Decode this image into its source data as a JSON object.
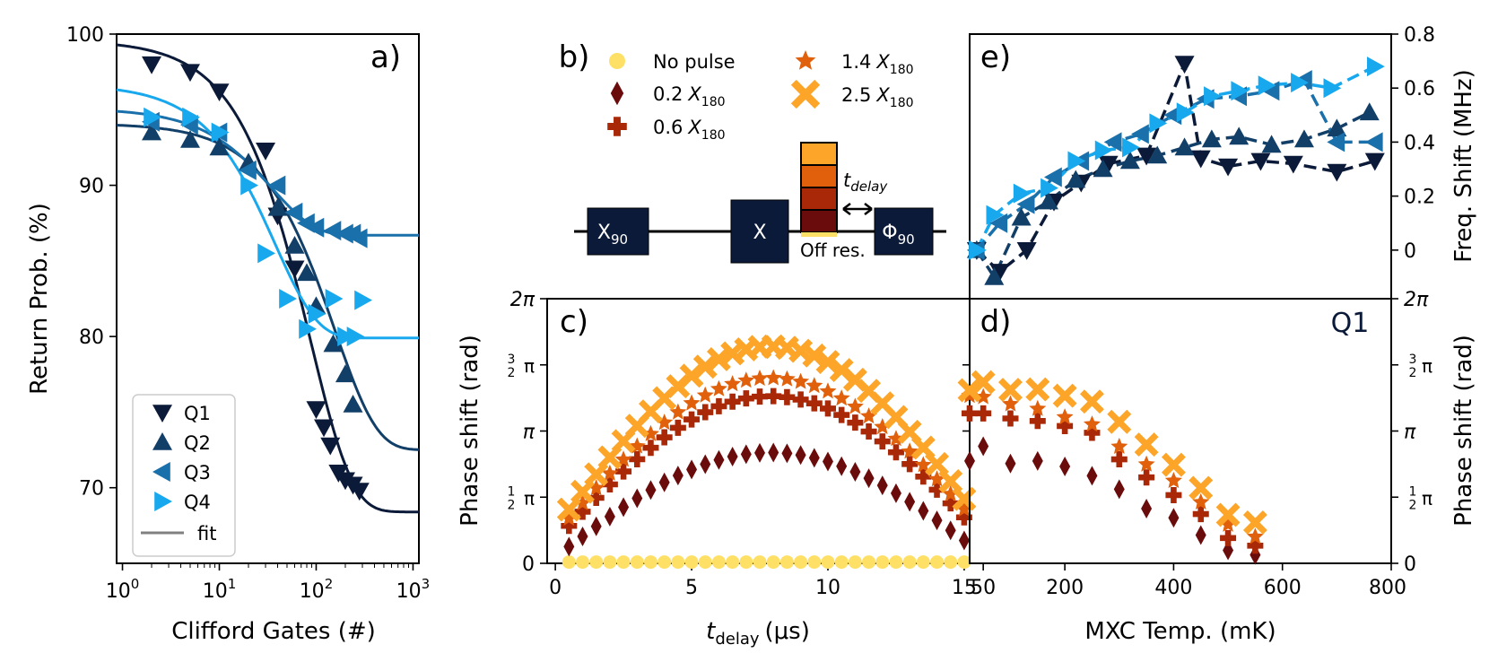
{
  "chart_data": [
    {
      "panel": "a)",
      "type": "scatter",
      "xscale": "log",
      "xlabel": "Clifford Gates (#)",
      "ylabel": "Return Prob. (%)",
      "xlim": [
        1,
        1000
      ],
      "ylim": [
        65,
        100
      ],
      "yticks": [
        70,
        80,
        90,
        100
      ],
      "xtick_labels": [
        {
          "base": "10",
          "exp": "0"
        },
        {
          "base": "10",
          "exp": "1"
        },
        {
          "base": "10",
          "exp": "2"
        },
        {
          "base": "10",
          "exp": "3"
        }
      ],
      "legend": [
        "Q1",
        "Q2",
        "Q3",
        "Q4",
        "fit"
      ],
      "legend_loc": "lower-left",
      "series": [
        {
          "name": "Q1",
          "marker": "triangle-down",
          "color": "#0b1a38",
          "x": [
            2,
            5,
            10,
            30,
            40,
            60,
            100,
            120,
            140,
            170,
            200,
            240,
            280
          ],
          "y": [
            98.0,
            97.5,
            96.2,
            92.3,
            88.0,
            84.5,
            75.2,
            74.0,
            72.8,
            71.0,
            70.5,
            70.2,
            69.8
          ],
          "fit": {
            "A": 31.2,
            "B": 68.4,
            "p": 0.9885
          }
        },
        {
          "name": "Q2",
          "marker": "triangle-up",
          "color": "#123f68",
          "x": [
            2,
            5,
            10,
            20,
            40,
            60,
            80,
            100,
            150,
            200,
            240
          ],
          "y": [
            93.5,
            93.0,
            92.5,
            91.5,
            88.5,
            86.0,
            84.2,
            82.0,
            79.5,
            77.5,
            75.5
          ],
          "fit": {
            "A": 21.6,
            "B": 72.5,
            "p": 0.9936
          }
        },
        {
          "name": "Q3",
          "marker": "triangle-left",
          "color": "#1a70aa",
          "x": [
            2,
            5,
            10,
            20,
            40,
            60,
            80,
            100,
            150,
            200,
            240,
            280
          ],
          "y": [
            94.2,
            94.0,
            93.5,
            91.0,
            90.0,
            88.2,
            87.5,
            87.2,
            87.0,
            86.8,
            86.8,
            86.5
          ],
          "fit": {
            "A": 8.4,
            "B": 86.7,
            "p": 0.972
          }
        },
        {
          "name": "Q4",
          "marker": "triangle-right",
          "color": "#18a8ee",
          "x": [
            2,
            5,
            10,
            20,
            30,
            50,
            80,
            100,
            150,
            200,
            250,
            300
          ],
          "y": [
            94.5,
            94.5,
            93.5,
            90.0,
            85.5,
            82.5,
            80.5,
            81.5,
            82.5,
            80.0,
            80.0,
            82.4
          ],
          "fit": {
            "A": 16.8,
            "B": 79.9,
            "p": 0.974
          }
        }
      ]
    },
    {
      "panel": "b)",
      "type": "diagram",
      "legend": [
        {
          "label": "No pulse",
          "marker": "circle",
          "color": "#ffe066"
        },
        {
          "label": "0.2",
          "sub": "180",
          "marker": "diamond",
          "color": "#6b0c0c"
        },
        {
          "label": "0.6",
          "sub": "180",
          "marker": "plus",
          "color": "#a82808"
        },
        {
          "label": "1.4",
          "sub": "180",
          "marker": "star",
          "color": "#e0600c"
        },
        {
          "label": "2.5",
          "sub": "180",
          "marker": "x",
          "color": "#fca528"
        }
      ],
      "gates": {
        "x90_main": "X",
        "x90_sub": "90",
        "x_gate": "X",
        "phi_main": "Φ",
        "phi_sub": "90"
      },
      "delay_label_main": "t",
      "delay_label_sub": "delay",
      "off_res_label": "Off res."
    },
    {
      "panel": "c)",
      "type": "scatter",
      "xlabel_main": "t",
      "xlabel_sub": "delay",
      "xlabel_unit": "(μs)",
      "ylabel": "Phase shift (rad)",
      "xlim": [
        -0.3,
        15.2
      ],
      "ylim": [
        0,
        6.2832
      ],
      "xticks": [
        0,
        5,
        10,
        15
      ],
      "ytick_labels": [
        "0",
        "π/2",
        "π",
        "3π/2",
        "2π"
      ],
      "ytick_values": [
        0,
        1.5708,
        3.1416,
        4.7124,
        6.2832
      ],
      "series": [
        {
          "name": "No pulse",
          "marker": "circle",
          "color": "#ffe066",
          "y": [
            0.03,
            0.03,
            0.03,
            0.03,
            0.03,
            0.03,
            0.03,
            0.03,
            0.03,
            0.03,
            0.03,
            0.03,
            0.03,
            0.03,
            0.03,
            0.03,
            0.03,
            0.03,
            0.03,
            0.03,
            0.03,
            0.03,
            0.03,
            0.03,
            0.03,
            0.03,
            0.03,
            0.03,
            0.03,
            0.03
          ]
        },
        {
          "name": "0.2 X180",
          "marker": "diamond",
          "color": "#6b0c0c",
          "amp": 2.48,
          "base": 0.15
        },
        {
          "name": "0.6 X180",
          "marker": "plus",
          "color": "#a82808",
          "amp": 3.42,
          "base": 0.55
        },
        {
          "name": "1.4 X180",
          "marker": "star",
          "color": "#e0600c",
          "amp": 3.7,
          "base": 0.7
        },
        {
          "name": "2.5 X180",
          "marker": "x",
          "color": "#fca528",
          "amp": 4.3,
          "base": 0.85
        }
      ],
      "x": [
        0.5,
        1.0,
        1.5,
        2.0,
        2.5,
        3.0,
        3.5,
        4.0,
        4.5,
        5.0,
        5.5,
        6.0,
        6.5,
        7.0,
        7.5,
        8.0,
        8.5,
        9.0,
        9.5,
        10.0,
        10.5,
        11.0,
        11.5,
        12.0,
        12.5,
        13.0,
        13.5,
        14.0,
        14.5,
        15.0
      ]
    },
    {
      "panel": "d)",
      "type": "scatter",
      "xlabel": "MXC Temp. (mK)",
      "ylabel": "Phase shift (rad)",
      "annotation": "Q1",
      "xlim": [
        25,
        800
      ],
      "ylim": [
        0,
        6.2832
      ],
      "xtick_labels": [
        "50",
        "200",
        "400",
        "600",
        "800"
      ],
      "xtick_values": [
        50,
        200,
        400,
        600,
        800
      ],
      "ytick_labels": [
        "0",
        "π/2",
        "π",
        "3π/2",
        "2π"
      ],
      "x": [
        25,
        50,
        100,
        150,
        200,
        250,
        300,
        350,
        400,
        450,
        500,
        550
      ],
      "series": [
        {
          "name": "0.2 X180",
          "marker": "diamond",
          "color": "#6b0c0c",
          "y": [
            2.43,
            2.78,
            2.37,
            2.43,
            2.3,
            2.08,
            1.76,
            1.3,
            1.08,
            0.67,
            0.31,
            0.2
          ]
        },
        {
          "name": "0.6 X180",
          "marker": "plus",
          "color": "#a82808",
          "y": [
            3.56,
            3.56,
            3.44,
            3.38,
            3.26,
            3.1,
            2.47,
            2.04,
            1.62,
            1.17,
            0.6,
            0.42
          ]
        },
        {
          "name": "1.4 X180",
          "marker": "star",
          "color": "#e0600c",
          "y": [
            3.98,
            3.95,
            3.78,
            3.67,
            3.47,
            3.3,
            2.77,
            2.35,
            1.96,
            1.45,
            0.92,
            0.63
          ]
        },
        {
          "name": "2.5 X180",
          "marker": "x",
          "color": "#fca528",
          "y": [
            4.11,
            4.3,
            4.12,
            4.13,
            3.98,
            3.84,
            3.36,
            2.82,
            2.34,
            1.79,
            1.15,
            0.97
          ]
        }
      ]
    },
    {
      "panel": "e)",
      "type": "line",
      "ylabel": "Freq. Shift (MHz)",
      "xlim": [
        25,
        800
      ],
      "ylim": [
        -0.18,
        0.8
      ],
      "yticks": [
        0,
        0.2,
        0.4,
        0.6,
        0.8
      ],
      "ytick_labels": [
        "0",
        "0.2",
        "0.4",
        "0.6",
        "0.8"
      ],
      "series": [
        {
          "name": "Q1",
          "marker": "triangle-down",
          "color": "#0b1a38",
          "x": [
            38,
            80,
            130,
            180,
            230,
            280,
            350,
            420,
            450,
            500,
            560,
            620,
            700,
            770
          ],
          "y": [
            0.0,
            -0.08,
            0.0,
            0.18,
            0.25,
            0.32,
            0.35,
            0.69,
            0.34,
            0.31,
            0.33,
            0.32,
            0.29,
            0.33
          ]
        },
        {
          "name": "Q2",
          "marker": "triangle-up",
          "color": "#123f68",
          "x": [
            38,
            70,
            120,
            170,
            220,
            270,
            320,
            370,
            420,
            470,
            520,
            580,
            640,
            700,
            760
          ],
          "y": [
            0.0,
            -0.1,
            0.12,
            0.18,
            0.26,
            0.3,
            0.33,
            0.35,
            0.38,
            0.41,
            0.42,
            0.39,
            0.41,
            0.45,
            0.51
          ]
        },
        {
          "name": "Q3",
          "marker": "triangle-left",
          "color": "#1a70aa",
          "x": [
            38,
            80,
            130,
            180,
            230,
            290,
            340,
            400,
            460,
            520,
            580,
            640,
            700,
            770
          ],
          "y": [
            0.0,
            0.1,
            0.17,
            0.27,
            0.33,
            0.4,
            0.43,
            0.5,
            0.56,
            0.57,
            0.59,
            0.63,
            0.4,
            0.4
          ]
        },
        {
          "name": "Q4",
          "marker": "triangle-right",
          "color": "#18a8ee",
          "x": [
            38,
            70,
            120,
            170,
            220,
            270,
            320,
            370,
            420,
            470,
            520,
            570,
            630,
            690,
            770
          ],
          "y": [
            0.0,
            0.13,
            0.21,
            0.23,
            0.33,
            0.37,
            0.38,
            0.47,
            0.51,
            0.57,
            0.59,
            0.61,
            0.62,
            0.6,
            0.68
          ]
        }
      ]
    }
  ],
  "panel_labels": {
    "a": "a)",
    "b": "b)",
    "c": "c)",
    "d": "d)",
    "e": "e)"
  }
}
